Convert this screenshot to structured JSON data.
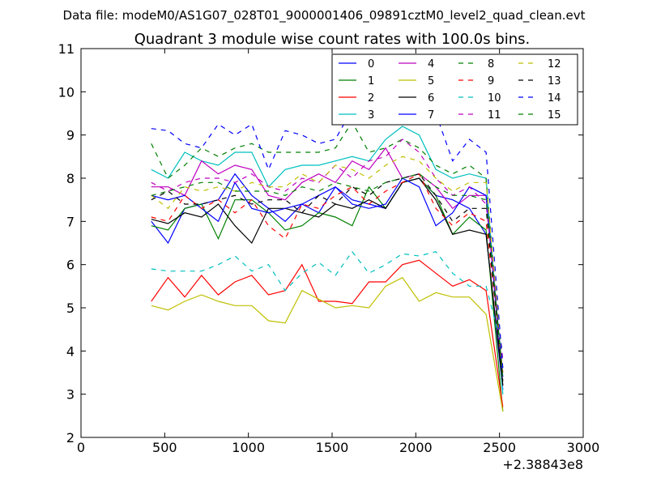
{
  "figure": {
    "suptitle": "Data file: modeM0/AS1G07_028T01_9000001406_09891cztM0_level2_quad_clean.evt"
  },
  "chart_data": {
    "type": "line",
    "title": "Quadrant 3 module wise count rates with 100.0s bins.",
    "xlabel": "",
    "ylabel": "",
    "x_offset_label": "+2.38843e8",
    "xlim": [
      0,
      3000
    ],
    "ylim": [
      2,
      11
    ],
    "xticks": [
      0,
      500,
      1000,
      1500,
      2000,
      2500,
      3000
    ],
    "yticks": [
      2,
      3,
      4,
      5,
      6,
      7,
      8,
      9,
      10,
      11
    ],
    "legend_position": "top-right",
    "x": [
      420,
      520,
      620,
      720,
      820,
      920,
      1020,
      1120,
      1220,
      1320,
      1420,
      1520,
      1620,
      1720,
      1820,
      1920,
      2020,
      2120,
      2220,
      2320,
      2420,
      2520
    ],
    "series": [
      {
        "name": "0",
        "color": "#0000ff",
        "dash": "solid",
        "values": [
          7.0,
          6.5,
          7.3,
          7.4,
          7.5,
          8.1,
          7.6,
          7.3,
          7.0,
          7.4,
          7.2,
          7.8,
          7.5,
          7.4,
          7.3,
          7.9,
          8.0,
          7.6,
          7.5,
          7.3,
          6.7,
          3.1
        ]
      },
      {
        "name": "1",
        "color": "#008000",
        "dash": "solid",
        "values": [
          6.9,
          6.8,
          7.3,
          7.4,
          6.6,
          7.5,
          7.5,
          7.2,
          6.8,
          6.9,
          7.2,
          7.1,
          6.9,
          7.8,
          7.3,
          7.9,
          8.0,
          7.6,
          6.7,
          7.1,
          6.8,
          2.6
        ]
      },
      {
        "name": "2",
        "color": "#ff0000",
        "dash": "solid",
        "values": [
          5.15,
          5.7,
          5.25,
          5.75,
          5.3,
          5.6,
          5.75,
          5.3,
          5.4,
          6.0,
          5.15,
          5.15,
          5.1,
          5.6,
          5.6,
          6.0,
          6.1,
          5.8,
          5.5,
          5.65,
          5.4,
          2.7
        ]
      },
      {
        "name": "3",
        "color": "#00bfbf",
        "dash": "solid",
        "values": [
          8.2,
          8.0,
          8.6,
          8.4,
          8.3,
          8.6,
          8.6,
          7.8,
          8.2,
          8.3,
          8.3,
          8.4,
          8.5,
          8.4,
          8.9,
          9.2,
          9.0,
          8.2,
          8.0,
          8.1,
          8.0,
          3.0
        ]
      },
      {
        "name": "4",
        "color": "#bf00bf",
        "dash": "solid",
        "values": [
          7.8,
          7.8,
          7.6,
          8.4,
          8.1,
          8.3,
          8.2,
          7.6,
          7.5,
          7.9,
          8.1,
          7.9,
          8.4,
          8.2,
          8.7,
          8.0,
          8.1,
          7.8,
          7.3,
          7.6,
          7.6,
          3.2
        ]
      },
      {
        "name": "5",
        "color": "#bfbf00",
        "dash": "solid",
        "values": [
          5.05,
          4.95,
          5.15,
          5.3,
          5.15,
          5.05,
          5.05,
          4.7,
          4.65,
          5.4,
          5.2,
          5.0,
          5.05,
          5.0,
          5.5,
          5.7,
          5.15,
          5.35,
          5.25,
          5.25,
          4.85,
          2.6
        ]
      },
      {
        "name": "6",
        "color": "#000000",
        "dash": "solid",
        "values": [
          7.05,
          6.95,
          7.2,
          7.1,
          7.4,
          6.9,
          6.5,
          7.3,
          7.3,
          7.2,
          7.1,
          7.4,
          7.3,
          7.5,
          7.3,
          7.9,
          8.0,
          7.5,
          6.7,
          6.8,
          6.7,
          3.2
        ]
      },
      {
        "name": "7",
        "color": "#0000ff",
        "dash": "solid",
        "values": [
          7.6,
          7.5,
          7.6,
          7.3,
          7.0,
          7.9,
          7.3,
          7.2,
          7.3,
          7.4,
          7.6,
          7.8,
          7.4,
          7.3,
          7.4,
          8.0,
          7.8,
          6.9,
          7.2,
          7.8,
          7.6,
          3.4
        ]
      },
      {
        "name": "8",
        "color": "#008000",
        "dash": "dashed",
        "values": [
          8.8,
          8.0,
          8.3,
          8.7,
          8.5,
          8.7,
          8.8,
          8.6,
          8.6,
          8.6,
          8.6,
          8.7,
          9.3,
          8.6,
          8.7,
          8.9,
          8.7,
          8.3,
          8.1,
          8.3,
          8.0,
          3.3
        ]
      },
      {
        "name": "9",
        "color": "#ff0000",
        "dash": "dashed",
        "values": [
          7.1,
          7.0,
          7.6,
          7.3,
          7.5,
          7.2,
          7.5,
          6.9,
          6.6,
          7.4,
          7.3,
          7.6,
          7.8,
          7.4,
          7.7,
          7.9,
          8.1,
          7.3,
          6.9,
          7.2,
          7.0,
          3.5
        ]
      },
      {
        "name": "10",
        "color": "#00bfbf",
        "dash": "dashed",
        "values": [
          5.9,
          5.85,
          5.85,
          5.85,
          6.0,
          6.2,
          5.85,
          6.0,
          5.4,
          5.8,
          6.05,
          5.75,
          6.3,
          5.8,
          6.0,
          6.25,
          6.2,
          6.3,
          5.8,
          5.5,
          5.5,
          4.0
        ]
      },
      {
        "name": "11",
        "color": "#bf00bf",
        "dash": "dashed",
        "values": [
          7.9,
          7.7,
          7.9,
          8.0,
          8.0,
          7.9,
          8.1,
          7.8,
          7.7,
          8.0,
          7.9,
          8.3,
          8.0,
          8.4,
          8.5,
          8.9,
          8.6,
          8.0,
          7.6,
          7.8,
          7.4,
          3.8
        ]
      },
      {
        "name": "12",
        "color": "#bfbf00",
        "dash": "dashed",
        "values": [
          7.6,
          7.3,
          7.8,
          7.7,
          7.8,
          7.7,
          7.9,
          7.8,
          7.8,
          8.1,
          7.9,
          8.3,
          8.2,
          8.0,
          8.3,
          8.5,
          8.4,
          8.0,
          7.7,
          7.9,
          7.9,
          3.6
        ]
      },
      {
        "name": "13",
        "color": "#000000",
        "dash": "dashed",
        "values": [
          7.5,
          7.7,
          7.4,
          7.4,
          7.5,
          7.6,
          7.4,
          7.5,
          7.5,
          7.2,
          7.6,
          7.4,
          7.8,
          7.6,
          7.9,
          8.0,
          8.1,
          7.6,
          7.0,
          7.3,
          7.3,
          3.3
        ]
      },
      {
        "name": "14",
        "color": "#0000ff",
        "dash": "dashed",
        "values": [
          9.15,
          9.1,
          8.8,
          8.7,
          9.25,
          9.0,
          9.25,
          8.2,
          9.1,
          9.0,
          8.8,
          8.9,
          9.6,
          9.6,
          9.8,
          9.6,
          10.0,
          9.5,
          8.4,
          8.9,
          8.6,
          3.6
        ]
      },
      {
        "name": "15",
        "color": "#008000",
        "dash": "dashed",
        "values": [
          7.6,
          7.7,
          7.8,
          7.9,
          7.9,
          7.7,
          7.7,
          7.7,
          7.6,
          7.8,
          7.7,
          7.9,
          7.8,
          7.7,
          7.9,
          8.0,
          8.1,
          7.8,
          7.6,
          7.6,
          7.5,
          3.4
        ]
      }
    ]
  }
}
